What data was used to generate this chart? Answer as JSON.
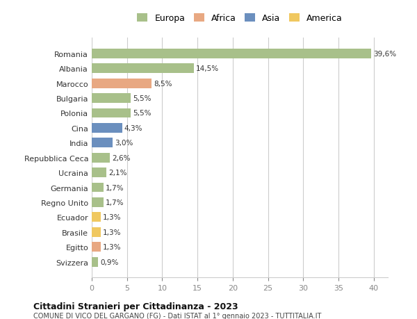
{
  "categories": [
    "Romania",
    "Albania",
    "Marocco",
    "Bulgaria",
    "Polonia",
    "Cina",
    "India",
    "Repubblica Ceca",
    "Ucraina",
    "Germania",
    "Regno Unito",
    "Ecuador",
    "Brasile",
    "Egitto",
    "Svizzera"
  ],
  "values": [
    39.6,
    14.5,
    8.5,
    5.5,
    5.5,
    4.3,
    3.0,
    2.6,
    2.1,
    1.7,
    1.7,
    1.3,
    1.3,
    1.3,
    0.9
  ],
  "labels": [
    "39,6%",
    "14,5%",
    "8,5%",
    "5,5%",
    "5,5%",
    "4,3%",
    "3,0%",
    "2,6%",
    "2,1%",
    "1,7%",
    "1,7%",
    "1,3%",
    "1,3%",
    "1,3%",
    "0,9%"
  ],
  "colors": [
    "#a8c08a",
    "#a8c08a",
    "#e8a882",
    "#a8c08a",
    "#a8c08a",
    "#6b8fbe",
    "#6b8fbe",
    "#a8c08a",
    "#a8c08a",
    "#a8c08a",
    "#a8c08a",
    "#f0c860",
    "#f0c860",
    "#e8a882",
    "#a8c08a"
  ],
  "legend_labels": [
    "Europa",
    "Africa",
    "Asia",
    "America"
  ],
  "legend_colors": [
    "#a8c08a",
    "#e8a882",
    "#6b8fbe",
    "#f0c860"
  ],
  "xlim": [
    0,
    42
  ],
  "xticks": [
    0,
    5,
    10,
    15,
    20,
    25,
    30,
    35,
    40
  ],
  "title": "Cittadini Stranieri per Cittadinanza - 2023",
  "subtitle": "COMUNE DI VICO DEL GARGANO (FG) - Dati ISTAT al 1° gennaio 2023 - TUTTITALIA.IT",
  "bg_color": "#ffffff",
  "grid_color": "#cccccc",
  "bar_height": 0.65
}
